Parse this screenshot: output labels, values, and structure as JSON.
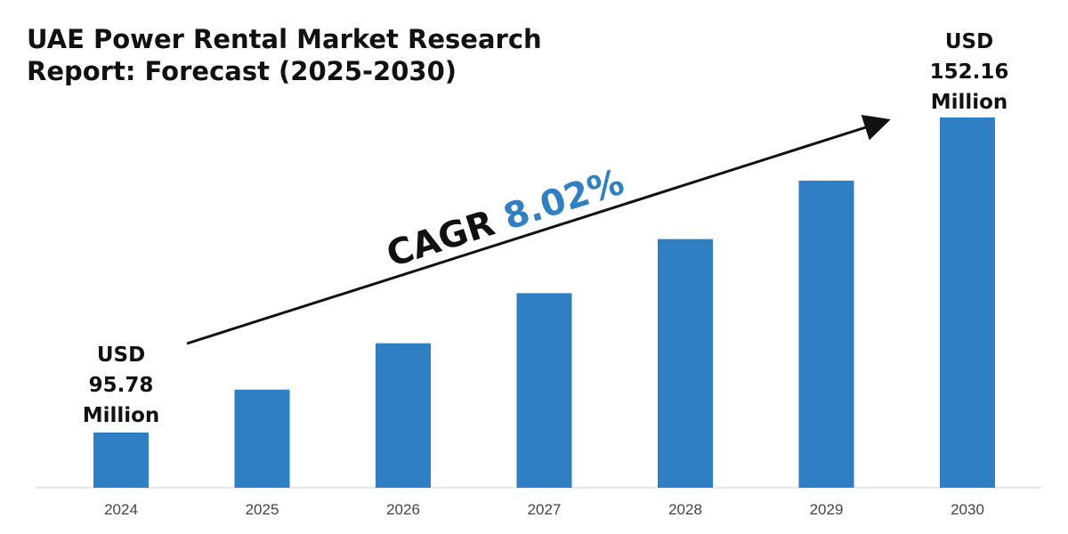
{
  "chart_data": {
    "type": "bar",
    "title": "UAE Power Rental Market Research Report: Forecast (2025-2030)",
    "categories": [
      "2024",
      "2025",
      "2026",
      "2027",
      "2028",
      "2029",
      "2030"
    ],
    "values": [
      95.78,
      103.46,
      111.76,
      120.72,
      130.4,
      140.86,
      152.16
    ],
    "unit": "USD Million",
    "bar_color": "#2e7fc4",
    "annotations": {
      "start": [
        "USD",
        "95.78",
        "Million"
      ],
      "end": [
        "USD",
        "152.16",
        "Million"
      ],
      "cagr_label": "CAGR",
      "cagr_value": "8.02%",
      "cagr_color": "#2e7fc4"
    },
    "grid": false,
    "legend": "none"
  }
}
